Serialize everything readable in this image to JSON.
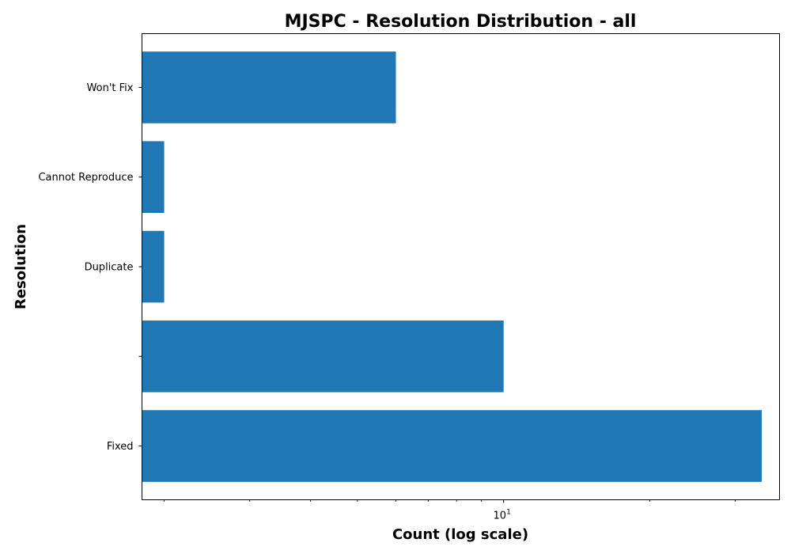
{
  "chart_data": {
    "type": "bar",
    "orientation": "horizontal",
    "title": "MJSPC - Resolution Distribution - all",
    "xlabel": "Count (log scale)",
    "ylabel": "Resolution",
    "xscale": "log",
    "xlim": [
      1.8,
      37
    ],
    "categories": [
      "Fixed",
      "",
      "Duplicate",
      "Cannot Reproduce",
      "Won't Fix"
    ],
    "values": [
      34,
      10,
      2,
      2,
      6
    ],
    "bar_color": "#1f77b4",
    "x_tick_major": {
      "value": 10,
      "base": "10",
      "exponent": "1"
    },
    "x_ticks_minor": [
      2,
      3,
      4,
      5,
      6,
      7,
      8,
      9,
      20,
      30
    ],
    "grid": false
  }
}
